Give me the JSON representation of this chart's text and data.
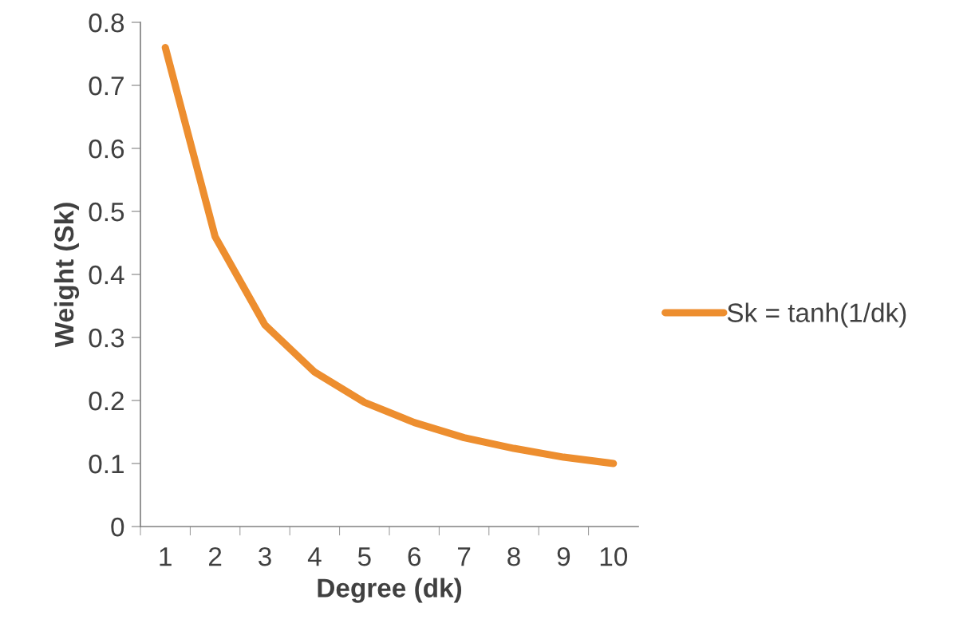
{
  "chart_data": {
    "type": "line",
    "xlabel": "Degree (dk)",
    "ylabel": "Weight (Sk)",
    "categories": [
      "1",
      "2",
      "3",
      "4",
      "5",
      "6",
      "7",
      "8",
      "9",
      "10"
    ],
    "series": [
      {
        "name": "Sk = tanh(1/dk)",
        "color": "#ed8e2f",
        "values": [
          0.76,
          0.46,
          0.32,
          0.245,
          0.197,
          0.165,
          0.141,
          0.124,
          0.11,
          0.1
        ]
      }
    ],
    "ylim": [
      0,
      0.8
    ],
    "yticks": [
      0,
      0.1,
      0.2,
      0.3,
      0.4,
      0.5,
      0.6,
      0.7,
      0.8
    ],
    "grid": false,
    "legend": "right",
    "marker": "none",
    "line_style": "solid"
  }
}
